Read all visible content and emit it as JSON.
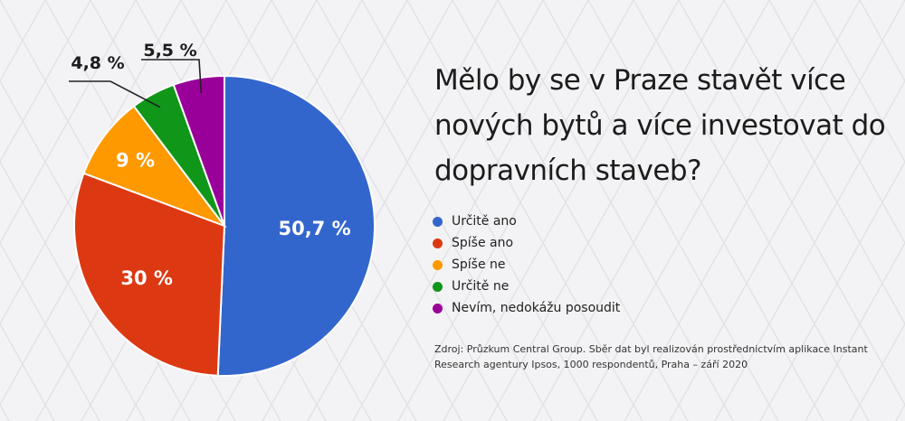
{
  "title": "Mělo by se v Praze stavět více nových bytů a více investovat do dopravních staveb?",
  "source": "Zdroj: Průzkum Central Group. Sběr dat byl realizován prostřednictvím aplikace Instant Research agentury Ipsos, 1000 respondentů, Praha – září 2020",
  "colors": {
    "background": "#f3f3f5",
    "grid": "#e2e2e6"
  },
  "chart_data": {
    "type": "pie",
    "title": "Mělo by se v Praze stavět více nových bytů a více investovat do dopravních staveb?",
    "legend_position": "right",
    "slices": [
      {
        "label": "Určitě ano",
        "value": 50.7,
        "value_label": "50,7 %",
        "color": "#3366cc"
      },
      {
        "label": "Spíše ano",
        "value": 30,
        "value_label": "30 %",
        "color": "#dc3912"
      },
      {
        "label": "Spíše ne",
        "value": 9,
        "value_label": "9 %",
        "color": "#ff9900"
      },
      {
        "label": "Určitě ne",
        "value": 4.8,
        "value_label": "4,8 %",
        "color": "#109618"
      },
      {
        "label": "Nevím, nedokážu posoudit",
        "value": 5.5,
        "value_label": "5,5 %",
        "color": "#990099"
      }
    ]
  }
}
